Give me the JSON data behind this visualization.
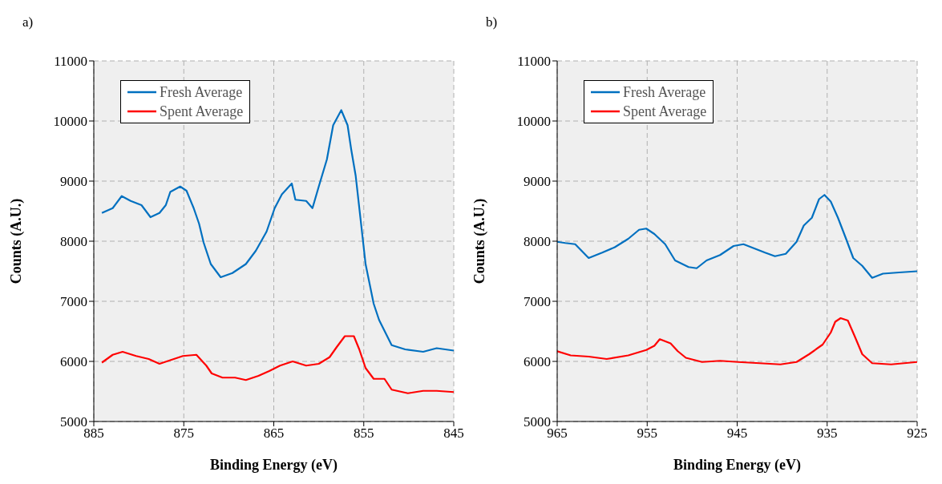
{
  "chart_data": [
    {
      "type": "line",
      "title": "a)",
      "xlabel": "Binding Energy (eV)",
      "ylabel": "Counts (A.U.)",
      "xlim": [
        885,
        845
      ],
      "xticks": [
        885,
        875,
        865,
        855,
        845
      ],
      "ylim": [
        5000,
        11000
      ],
      "yticks": [
        5000,
        6000,
        7000,
        8000,
        9000,
        10000,
        11000
      ],
      "grid": true,
      "legend": "top left",
      "line_style": "solid",
      "marker": "none",
      "series": [
        {
          "name": "Fresh Average",
          "color": "#0070c0",
          "x": [
            884.1,
            882.9,
            881.9,
            880.9,
            879.7,
            878.7,
            877.7,
            877.0,
            876.5,
            875.4,
            874.7,
            873.9,
            873.3,
            872.8,
            872.0,
            870.9,
            869.6,
            868.1,
            867.0,
            865.8,
            864.9,
            864.1,
            863.0,
            862.6,
            861.4,
            860.7,
            860.0,
            859.1,
            858.4,
            857.5,
            856.8,
            856.4,
            855.9,
            855.3,
            854.8,
            853.9,
            853.3,
            852.4,
            851.9,
            850.4,
            848.4,
            846.9,
            845.0
          ],
          "values": [
            8470,
            8550,
            8750,
            8670,
            8600,
            8400,
            8470,
            8600,
            8820,
            8910,
            8840,
            8550,
            8290,
            7980,
            7620,
            7400,
            7470,
            7620,
            7840,
            8160,
            8550,
            8780,
            8960,
            8690,
            8670,
            8550,
            8910,
            9360,
            9930,
            10180,
            9930,
            9530,
            9090,
            8290,
            7620,
            6960,
            6690,
            6420,
            6270,
            6200,
            6160,
            6220,
            6180
          ]
        },
        {
          "name": "Spent Average",
          "color": "#ff0000",
          "x": [
            884.1,
            882.9,
            881.8,
            880.3,
            878.9,
            877.7,
            876.5,
            875.1,
            873.6,
            872.5,
            871.9,
            870.7,
            869.3,
            868.1,
            866.7,
            865.5,
            864.3,
            862.9,
            861.4,
            860.0,
            858.8,
            858.0,
            857.1,
            856.1,
            855.5,
            854.8,
            853.9,
            852.7,
            851.9,
            850.1,
            848.4,
            846.9,
            845.0
          ],
          "values": [
            5980,
            6110,
            6160,
            6090,
            6040,
            5960,
            6020,
            6090,
            6110,
            5930,
            5800,
            5730,
            5730,
            5690,
            5760,
            5840,
            5930,
            6000,
            5930,
            5960,
            6070,
            6240,
            6420,
            6420,
            6200,
            5890,
            5710,
            5710,
            5530,
            5470,
            5510,
            5510,
            5490
          ]
        }
      ]
    },
    {
      "type": "line",
      "title": "b)",
      "xlabel": "Binding Energy (eV)",
      "ylabel": "Counts (A.U.)",
      "xlim": [
        965,
        925
      ],
      "xticks": [
        965,
        955,
        945,
        935,
        925
      ],
      "ylim": [
        5000,
        11000
      ],
      "yticks": [
        5000,
        6000,
        7000,
        8000,
        9000,
        10000,
        11000
      ],
      "grid": true,
      "legend": "top left",
      "line_style": "solid",
      "marker": "none",
      "series": [
        {
          "name": "Fresh Average",
          "color": "#0070c0",
          "x": [
            965.0,
            964.1,
            963.0,
            961.5,
            960.0,
            958.6,
            957.1,
            955.9,
            955.1,
            954.2,
            953.0,
            951.9,
            950.4,
            949.5,
            948.4,
            946.9,
            945.4,
            944.3,
            943.1,
            941.9,
            940.8,
            939.6,
            938.4,
            937.6,
            936.7,
            935.9,
            935.3,
            934.6,
            933.8,
            932.9,
            932.1,
            931.1,
            930.0,
            928.8,
            927.0,
            925.0
          ],
          "values": [
            7990,
            7970,
            7950,
            7720,
            7810,
            7900,
            8040,
            8190,
            8210,
            8120,
            7950,
            7680,
            7570,
            7550,
            7680,
            7770,
            7920,
            7950,
            7880,
            7810,
            7750,
            7790,
            7990,
            8260,
            8390,
            8700,
            8770,
            8660,
            8390,
            8040,
            7720,
            7590,
            7390,
            7460,
            7480,
            7500
          ]
        },
        {
          "name": "Spent Average",
          "color": "#ff0000",
          "x": [
            965.0,
            963.5,
            961.5,
            959.5,
            957.1,
            955.1,
            954.2,
            953.6,
            952.4,
            951.6,
            950.7,
            948.9,
            946.9,
            944.9,
            942.5,
            940.2,
            938.4,
            937.0,
            935.5,
            934.6,
            934.1,
            933.5,
            932.7,
            932.0,
            931.1,
            930.0,
            927.9,
            925.0
          ],
          "values": [
            6170,
            6100,
            6080,
            6040,
            6100,
            6190,
            6260,
            6370,
            6300,
            6170,
            6060,
            5990,
            6010,
            5990,
            5970,
            5950,
            5990,
            6120,
            6280,
            6480,
            6660,
            6720,
            6680,
            6440,
            6120,
            5970,
            5950,
            5990
          ]
        }
      ]
    }
  ]
}
